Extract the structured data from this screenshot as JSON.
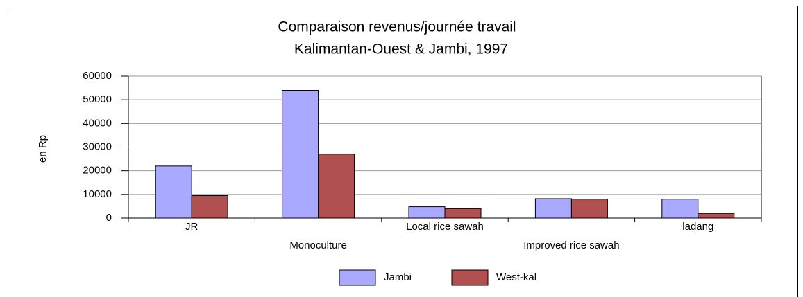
{
  "chart_data": {
    "type": "bar",
    "title": "Comparaison  revenus/journée travail",
    "subtitle": "Kalimantan-Ouest & Jambi, 1997",
    "ylabel": "en Rp",
    "categories": [
      "JR",
      "Monoculture",
      "Local rice sawah",
      "Improved rice sawah",
      "ladang"
    ],
    "series": [
      {
        "name": "Jambi",
        "color": "#a9a9ff",
        "values": [
          22000,
          54000,
          4800,
          8200,
          8000
        ]
      },
      {
        "name": "West-kal",
        "color": "#b05050",
        "values": [
          9500,
          27000,
          4000,
          8000,
          2000
        ]
      }
    ],
    "ylim": [
      0,
      60000
    ],
    "yticks": [
      0,
      10000,
      20000,
      30000,
      40000,
      50000,
      60000
    ],
    "grid": true,
    "legend": "bottom"
  }
}
